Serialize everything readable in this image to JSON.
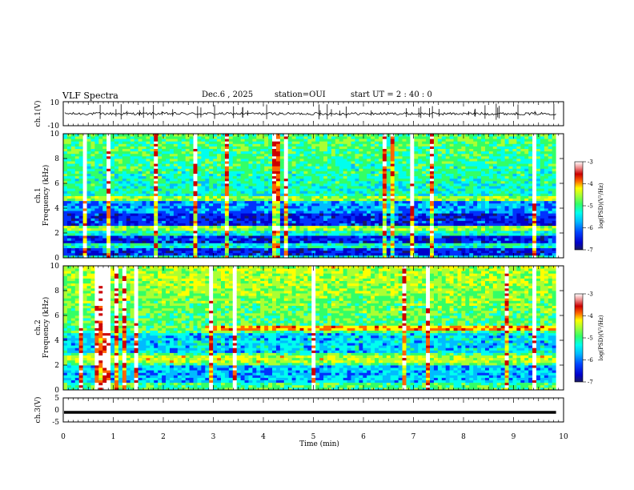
{
  "header": {
    "title": "VLF Spectra",
    "date": "Dec.6 , 2025",
    "station": "station=OUI",
    "start": "start UT = 2 : 40 : 0"
  },
  "colors": {
    "cmap": [
      "#1a1a60",
      "#0000cc",
      "#0033ff",
      "#00bbff",
      "#00ffee",
      "#33ff66",
      "#aaff33",
      "#ffff00",
      "#ff6600",
      "#cc0000",
      "#ffffff"
    ]
  },
  "chart_data": [
    {
      "type": "line",
      "panel": "ch1-waveform",
      "ylabel": "ch.1(V)",
      "ylim": [
        -10,
        10
      ],
      "yticks": [
        "10",
        "-10"
      ],
      "baseline": 0
    },
    {
      "type": "heatmap",
      "panel": "ch1-spectrogram",
      "ylabel_line1": "ch.1",
      "ylabel_line2": "Frequency (kHz)",
      "ylim": [
        0,
        10
      ],
      "yticks": [
        "0",
        "2",
        "4",
        "6",
        "8",
        "10"
      ],
      "quiet_bands_khz": [
        [
          0.3,
          0.8
        ],
        [
          1.2,
          1.8
        ],
        [
          2.6,
          3.6
        ]
      ],
      "bright_bands_khz": [
        [
          2.3,
          2.6
        ],
        [
          4.6,
          5.0
        ]
      ],
      "colorbar": {
        "ticks": [
          "-3",
          "-4",
          "-5",
          "-6",
          "-7"
        ],
        "label": "log(PSD)(V²/Hz)",
        "range": [
          -7,
          -3
        ]
      }
    },
    {
      "type": "heatmap",
      "panel": "ch2-spectrogram",
      "ylabel_line1": "ch.2",
      "ylabel_line2": "Frequency (kHz)",
      "ylim": [
        0,
        10
      ],
      "yticks": [
        "0",
        "2",
        "4",
        "6",
        "8",
        "10"
      ],
      "strong_band_khz": [
        4.8,
        5.2
      ],
      "strong_band_start_min": 2.8,
      "colorbar": {
        "ticks": [
          "-3",
          "-4",
          "-5",
          "-6",
          "-7"
        ],
        "label": "log(PSD)(V²/Hz)",
        "range": [
          -7,
          -3
        ]
      }
    },
    {
      "type": "line",
      "panel": "ch3-waveform",
      "ylabel": "ch.3(V)",
      "ylim": [
        -5,
        5
      ],
      "yticks": [
        "5",
        "0",
        "-5"
      ],
      "baseline": -1
    }
  ],
  "xaxis": {
    "label": "Time (min)",
    "range": [
      0,
      10
    ],
    "ticks": [
      "0",
      "1",
      "2",
      "3",
      "4",
      "5",
      "6",
      "7",
      "8",
      "9",
      "10"
    ],
    "data_end_min": 9.85
  }
}
